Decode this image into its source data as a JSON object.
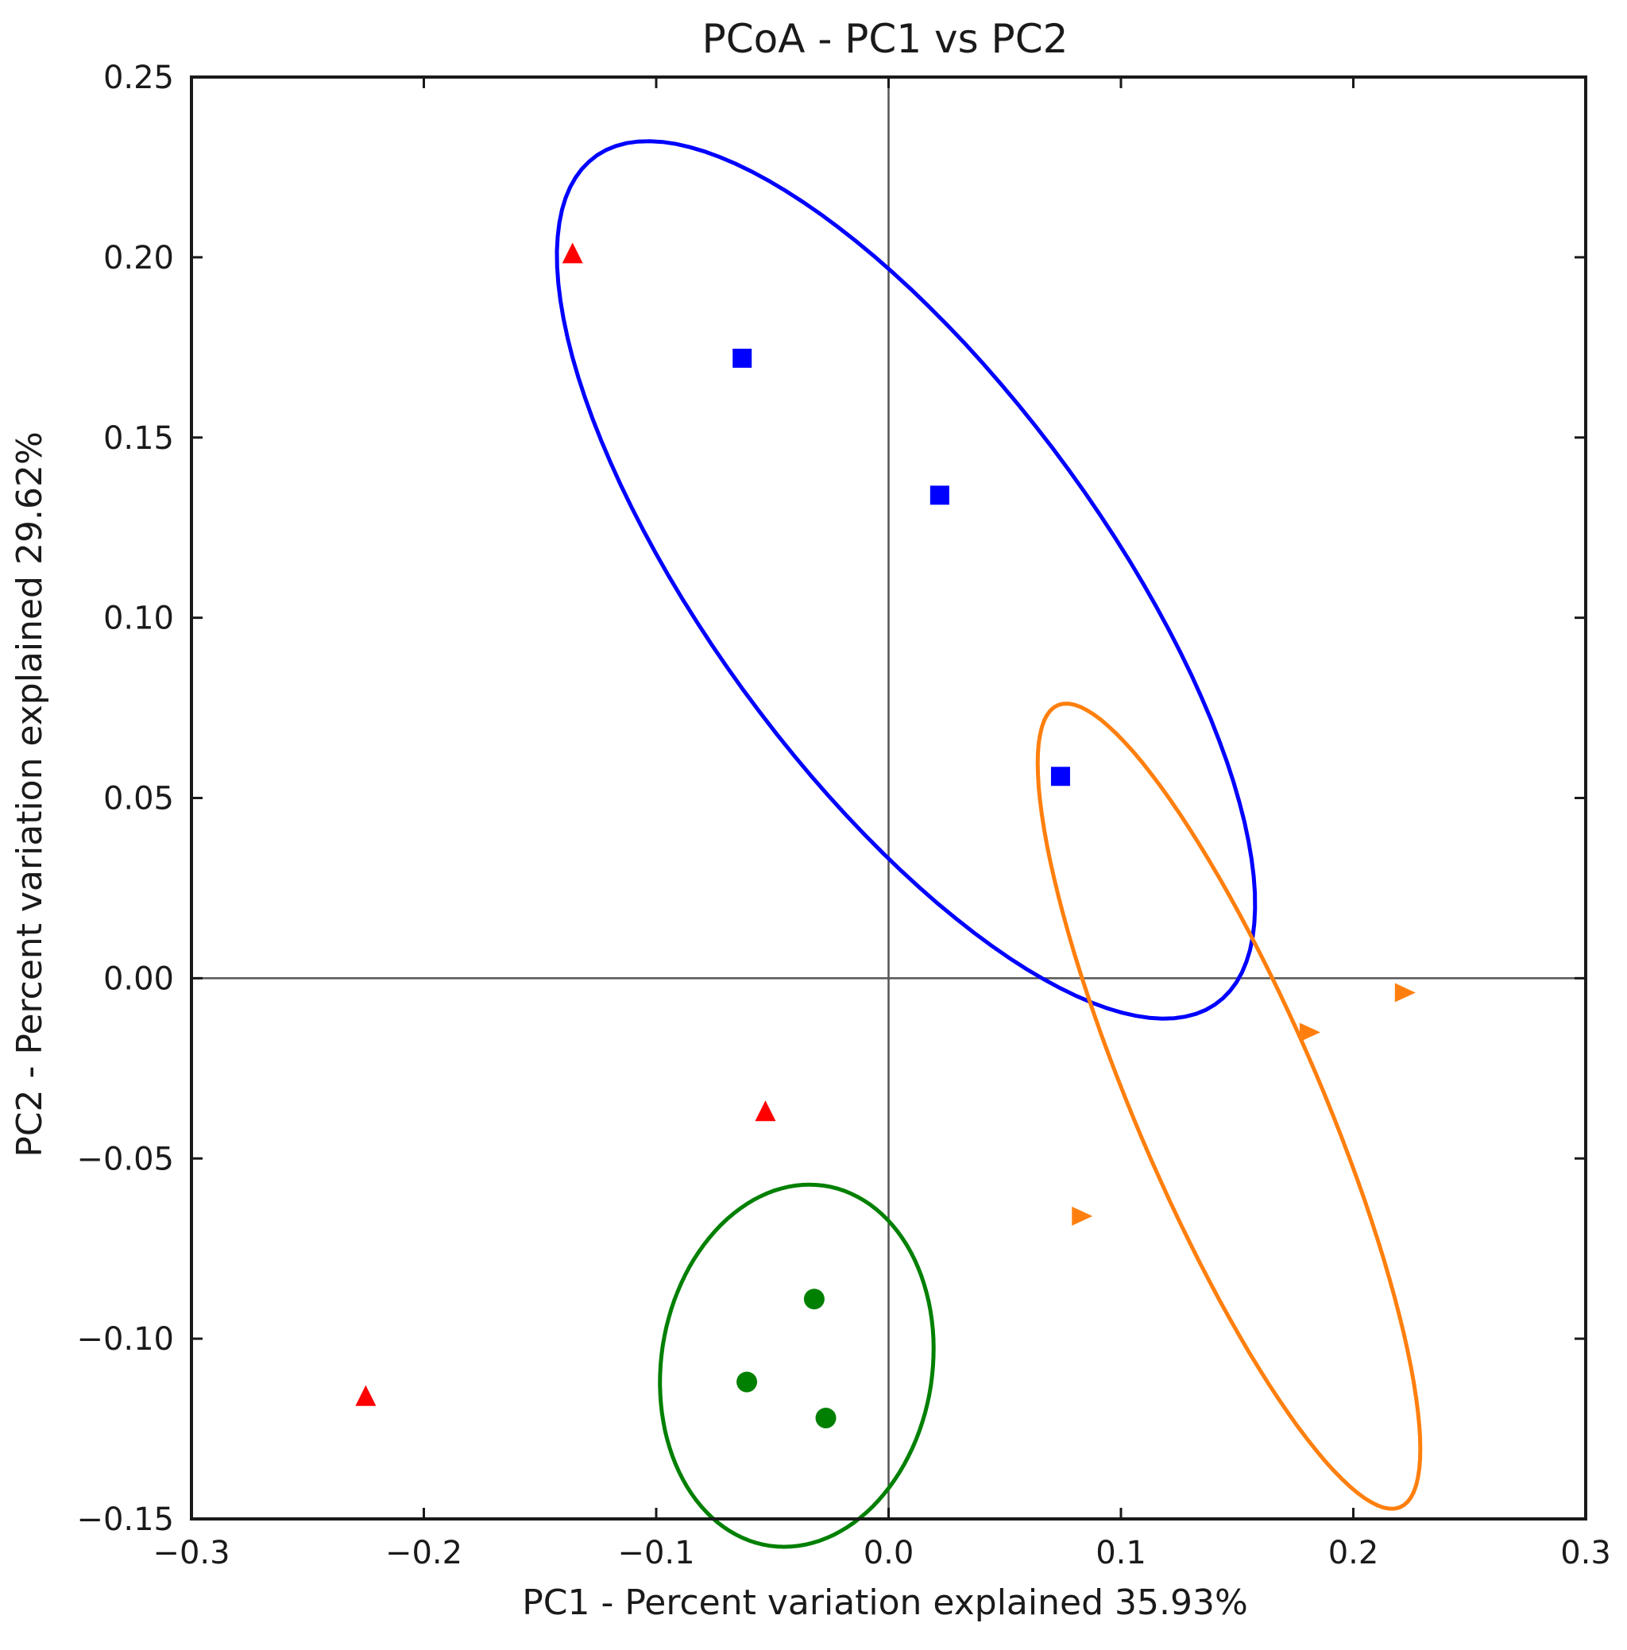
{
  "chart_data": {
    "type": "scatter",
    "title": "PCoA - PC1 vs PC2",
    "xlabel": "PC1 - Percent variation explained 35.93%",
    "ylabel": "PC2 - Percent variation explained 29.62%",
    "xlim": [
      -0.3,
      0.3
    ],
    "ylim": [
      -0.15,
      0.25
    ],
    "xticks": [
      -0.3,
      -0.2,
      -0.1,
      0.0,
      0.1,
      0.2,
      0.3
    ],
    "xtick_labels": [
      "−0.3",
      "−0.2",
      "−0.1",
      "0.0",
      "0.1",
      "0.2",
      "0.3"
    ],
    "yticks": [
      -0.15,
      -0.1,
      -0.05,
      0.0,
      0.05,
      0.1,
      0.15,
      0.2,
      0.25
    ],
    "ytick_labels": [
      "−0.15",
      "−0.10",
      "−0.05",
      "0.00",
      "0.05",
      "0.10",
      "0.15",
      "0.20",
      "0.25"
    ],
    "reference_lines": {
      "x": 0.0,
      "y": 0.0
    },
    "grid": false,
    "legend": false,
    "series": [
      {
        "marker": "triangle-up",
        "color": "#ff0000",
        "points": [
          [
            -0.136,
            0.201
          ],
          [
            -0.053,
            -0.037
          ],
          [
            -0.225,
            -0.116
          ]
        ]
      },
      {
        "marker": "square",
        "color": "#0000ff",
        "points": [
          [
            -0.063,
            0.172
          ],
          [
            0.022,
            0.134
          ],
          [
            0.074,
            0.056
          ]
        ],
        "ellipse": {
          "cx": 0.0075,
          "cy": 0.1105,
          "rx": 0.068,
          "ry": 0.181,
          "angle": -37
        }
      },
      {
        "marker": "circle",
        "color": "#008000",
        "points": [
          [
            -0.032,
            -0.089
          ],
          [
            -0.061,
            -0.112
          ],
          [
            -0.027,
            -0.122
          ]
        ],
        "ellipse": {
          "cx": -0.0395,
          "cy": -0.1075,
          "rx": 0.0495,
          "ry": 0.0595,
          "angle": 15
        }
      },
      {
        "marker": "triangle-right",
        "color": "#ff7f0e",
        "points": [
          [
            0.222,
            -0.004
          ],
          [
            0.181,
            -0.015
          ],
          [
            0.083,
            -0.066
          ]
        ],
        "ellipse": {
          "cx": 0.1465,
          "cy": -0.0355,
          "rx": 0.134,
          "ry": 0.036,
          "angle": 35
        }
      }
    ]
  }
}
